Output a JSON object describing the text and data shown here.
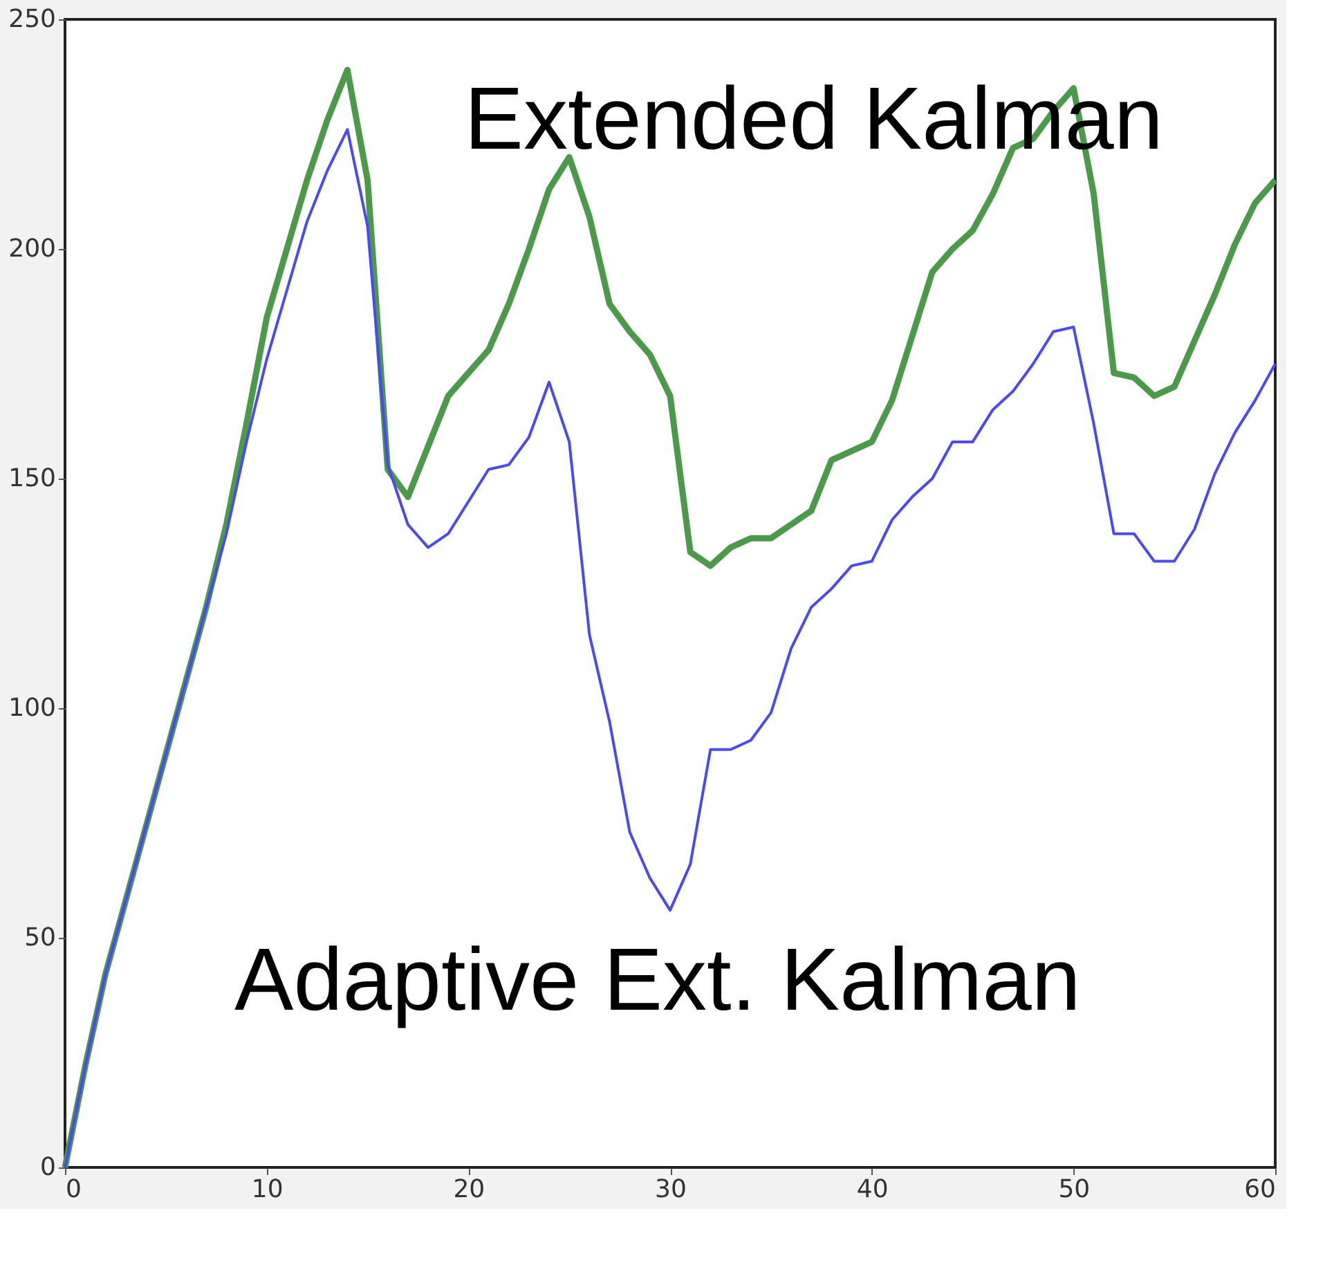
{
  "chart_data": {
    "type": "line",
    "x": [
      0,
      1,
      2,
      3,
      4,
      5,
      6,
      7,
      8,
      9,
      10,
      11,
      12,
      13,
      14,
      15,
      16,
      17,
      18,
      19,
      20,
      21,
      22,
      23,
      24,
      25,
      26,
      27,
      28,
      29,
      30,
      31,
      32,
      33,
      34,
      35,
      36,
      37,
      38,
      39,
      40,
      41,
      42,
      43,
      44,
      45,
      46,
      47,
      48,
      49,
      50,
      51,
      52,
      53,
      54,
      55,
      56,
      57,
      58,
      59,
      60
    ],
    "series": [
      {
        "name": "Extended Kalman",
        "color": "#4a9a4a",
        "values": [
          0,
          22,
          42,
          58,
          74,
          90,
          106,
          122,
          140,
          162,
          185,
          200,
          215,
          228,
          239,
          215,
          152,
          146,
          157,
          168,
          173,
          178,
          188,
          200,
          213,
          220,
          207,
          188,
          182,
          177,
          168,
          134,
          131,
          135,
          137,
          137,
          140,
          143,
          154,
          156,
          158,
          167,
          181,
          195,
          200,
          204,
          212,
          222,
          224,
          230,
          235,
          212,
          173,
          172,
          168,
          170,
          180,
          190,
          201,
          210,
          215
        ]
      },
      {
        "name": "Adaptive Ext. Kalman",
        "color": "#4a4af0",
        "values": [
          0,
          22,
          42,
          58,
          74,
          90,
          106,
          122,
          138,
          158,
          176,
          191,
          206,
          217,
          226,
          205,
          153,
          140,
          135,
          138,
          145,
          152,
          153,
          159,
          171,
          158,
          116,
          97,
          73,
          63,
          56,
          66,
          91,
          91,
          93,
          99,
          113,
          122,
          126,
          131,
          132,
          141,
          146,
          150,
          158,
          158,
          165,
          169,
          175,
          182,
          183,
          162,
          138,
          138,
          132,
          132,
          139,
          151,
          160,
          167,
          175
        ]
      }
    ],
    "xlim": [
      0,
      60
    ],
    "xticks": [
      0,
      10,
      20,
      30,
      40,
      50,
      60
    ],
    "ylim": [
      0,
      250
    ],
    "yticks": [
      0,
      50,
      100,
      150,
      200,
      250
    ],
    "grid": false,
    "legend": false,
    "marker": "none",
    "line_style": "solid"
  }
}
